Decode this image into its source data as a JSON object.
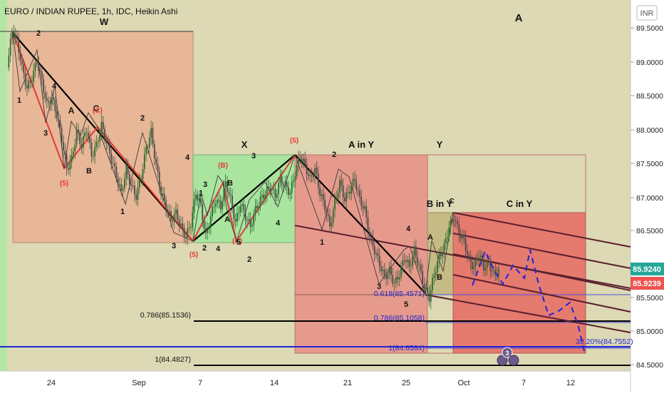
{
  "header": {
    "title": "EURO / INDIAN RUPEE, 1h, IDC, Heikin Ashi",
    "currency_badge": "INR"
  },
  "colors": {
    "background": "#dcd9b4",
    "box_orange": "#e7b797",
    "box_green": "#a9e59f",
    "box_salmon": "#e69a8c",
    "box_red": "#e57a6f",
    "box_olive": "#c6ba85",
    "candle_up": "#2c6b2f",
    "candle_down": "#4a4a4a",
    "trend_black": "#000000",
    "trend_red": "#e53935",
    "channel": "#5b1f2c",
    "blue": "#1f24d6",
    "price_green": "#26a69a",
    "price_red": "#ef5350"
  },
  "chart_data": {
    "type": "candlestick",
    "style": "Heikin Ashi",
    "symbol": "EURO / INDIAN RUPEE",
    "interval": "1h",
    "source": "IDC",
    "y_axis": {
      "ticks": [
        "89.5000",
        "89.0000",
        "88.5000",
        "88.0000",
        "87.5000",
        "87.0000",
        "86.5000",
        "85.5000",
        "85.0000",
        "84.5000"
      ],
      "range": [
        84.5,
        89.5
      ]
    },
    "x_axis": {
      "ticks": [
        "24",
        "Sep",
        "7",
        "14",
        "21",
        "25",
        "Oct",
        "7",
        "12"
      ]
    },
    "price_labels": {
      "current_green": "85.9240",
      "current_red": "85.9239"
    },
    "price_path": [
      [
        0,
        88.9
      ],
      [
        1,
        89.45
      ],
      [
        2,
        89.3
      ],
      [
        3,
        88.9
      ],
      [
        4,
        88.6
      ],
      [
        5,
        88.75
      ],
      [
        6,
        89.0
      ],
      [
        7,
        88.7
      ],
      [
        8,
        88.35
      ],
      [
        9,
        88.45
      ],
      [
        10,
        88.2
      ],
      [
        11,
        87.85
      ],
      [
        12,
        87.4
      ],
      [
        13,
        87.55
      ],
      [
        14,
        87.95
      ],
      [
        15,
        87.75
      ],
      [
        16,
        88.0
      ],
      [
        17,
        87.6
      ],
      [
        18,
        87.75
      ],
      [
        19,
        88.05
      ],
      [
        20,
        87.8
      ],
      [
        21,
        87.55
      ],
      [
        22,
        87.3
      ],
      [
        23,
        87.05
      ],
      [
        24,
        87.4
      ],
      [
        25,
        87.15
      ],
      [
        26,
        87.0
      ],
      [
        27,
        87.3
      ],
      [
        28,
        87.7
      ],
      [
        29,
        87.95
      ],
      [
        30,
        87.45
      ],
      [
        31,
        87.05
      ],
      [
        32,
        86.85
      ],
      [
        33,
        86.65
      ],
      [
        34,
        86.75
      ],
      [
        35,
        86.55
      ],
      [
        36,
        86.4
      ],
      [
        37,
        86.6
      ],
      [
        38,
        87.05
      ],
      [
        39,
        86.85
      ],
      [
        40,
        86.4
      ],
      [
        41,
        86.7
      ],
      [
        42,
        86.95
      ],
      [
        43,
        86.85
      ],
      [
        44,
        87.2
      ],
      [
        45,
        86.95
      ],
      [
        46,
        86.6
      ],
      [
        47,
        86.9
      ],
      [
        48,
        86.7
      ],
      [
        49,
        86.55
      ],
      [
        50,
        86.8
      ],
      [
        51,
        86.95
      ],
      [
        52,
        87.05
      ],
      [
        53,
        87.15
      ],
      [
        54,
        87.0
      ],
      [
        55,
        87.25
      ],
      [
        56,
        87.15
      ],
      [
        57,
        87.05
      ],
      [
        58,
        87.35
      ],
      [
        59,
        87.6
      ],
      [
        60,
        87.45
      ],
      [
        61,
        87.25
      ],
      [
        62,
        87.4
      ],
      [
        63,
        87.05
      ],
      [
        64,
        86.85
      ],
      [
        65,
        86.55
      ],
      [
        66,
        86.9
      ],
      [
        67,
        87.2
      ],
      [
        68,
        86.95
      ],
      [
        69,
        87.1
      ],
      [
        70,
        87.25
      ],
      [
        71,
        86.95
      ],
      [
        72,
        86.8
      ],
      [
        73,
        86.4
      ],
      [
        74,
        86.2
      ],
      [
        75,
        86.0
      ],
      [
        76,
        85.8
      ],
      [
        77,
        85.9
      ],
      [
        78,
        85.7
      ],
      [
        79,
        85.85
      ],
      [
        80,
        86.1
      ],
      [
        81,
        85.95
      ],
      [
        82,
        86.2
      ],
      [
        83,
        85.95
      ],
      [
        84,
        85.65
      ],
      [
        85,
        85.5
      ],
      [
        86,
        85.85
      ],
      [
        87,
        86.1
      ],
      [
        88,
        86.25
      ],
      [
        89,
        86.55
      ],
      [
        90,
        86.7
      ],
      [
        91,
        86.45
      ],
      [
        92,
        86.35
      ],
      [
        93,
        86.05
      ],
      [
        94,
        85.95
      ],
      [
        95,
        86.15
      ],
      [
        96,
        85.95
      ],
      [
        97,
        86.0
      ],
      [
        98,
        85.85
      ],
      [
        99,
        85.9
      ]
    ],
    "wave_labels": [
      {
        "text": "W",
        "color": "black"
      },
      {
        "text": "2",
        "color": "black"
      },
      {
        "text": "1",
        "color": "black"
      },
      {
        "text": "4",
        "color": "black"
      },
      {
        "text": "A",
        "color": "black"
      },
      {
        "text": "C",
        "color": "black"
      },
      {
        "text": "(C)",
        "color": "red"
      },
      {
        "text": "3",
        "color": "black"
      },
      {
        "text": "B",
        "color": "black"
      },
      {
        "text": "(5)",
        "color": "red"
      },
      {
        "text": "2",
        "color": "black"
      },
      {
        "text": "1",
        "color": "black"
      },
      {
        "text": "4",
        "color": "black"
      },
      {
        "text": "3",
        "color": "black"
      },
      {
        "text": "(5)",
        "color": "red"
      },
      {
        "text": "2",
        "color": "black"
      },
      {
        "text": "X",
        "color": "black"
      },
      {
        "text": "3",
        "color": "black"
      },
      {
        "text": "(B)",
        "color": "red"
      },
      {
        "text": "B",
        "color": "black"
      },
      {
        "text": "3",
        "color": "black"
      },
      {
        "text": "1",
        "color": "black"
      },
      {
        "text": "4",
        "color": "black"
      },
      {
        "text": "A",
        "color": "black"
      },
      {
        "text": "(C)",
        "color": "red"
      },
      {
        "text": "2",
        "color": "black"
      },
      {
        "text": "4",
        "color": "black"
      },
      {
        "text": "5",
        "color": "black"
      },
      {
        "text": "(5)",
        "color": "red"
      },
      {
        "text": "A in Y",
        "color": "black"
      },
      {
        "text": "2",
        "color": "black"
      },
      {
        "text": "1",
        "color": "black"
      },
      {
        "text": "4",
        "color": "black"
      },
      {
        "text": "3",
        "color": "black"
      },
      {
        "text": "5",
        "color": "black"
      },
      {
        "text": "Y",
        "color": "black"
      },
      {
        "text": "B in Y",
        "color": "black"
      },
      {
        "text": "C",
        "color": "black"
      },
      {
        "text": "A",
        "color": "black"
      },
      {
        "text": "B",
        "color": "black"
      },
      {
        "text": "C in Y",
        "color": "black"
      },
      {
        "text": "A",
        "color": "black"
      }
    ],
    "fib_labels": [
      {
        "text": "0.618(85.4571)",
        "color": "blue"
      },
      {
        "text": "0.786(85.1058)",
        "color": "blue"
      },
      {
        "text": "1(84.6584)",
        "color": "blue"
      },
      {
        "text": "38.20%(84.7552)",
        "color": "blue"
      },
      {
        "text": "0.786(85.1536)",
        "color": "black"
      },
      {
        "text": "1(84.4827)",
        "color": "black"
      }
    ],
    "event_badge": "3"
  }
}
